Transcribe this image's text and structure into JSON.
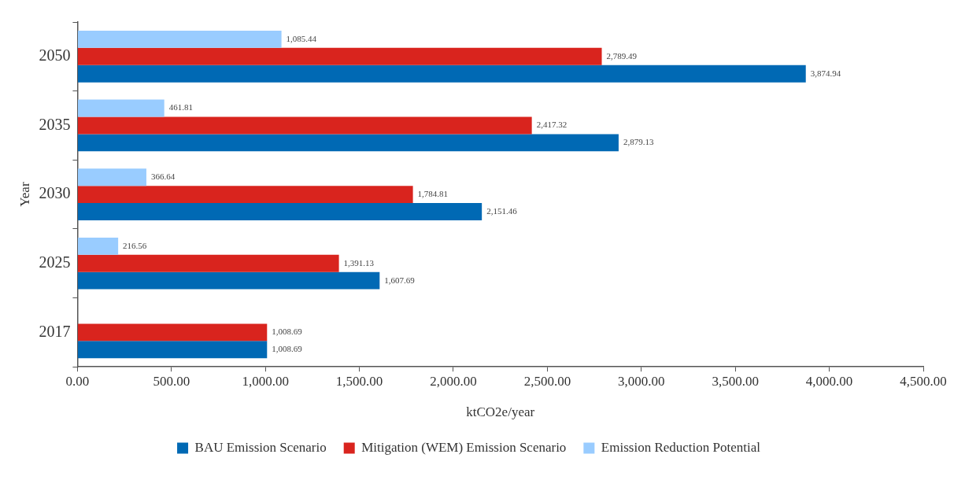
{
  "chart_data": {
    "type": "bar",
    "orientation": "horizontal",
    "xlabel": "ktCO2e/year",
    "ylabel": "Year",
    "categories": [
      "2050",
      "2035",
      "2030",
      "2025",
      "2017"
    ],
    "series": [
      {
        "name": "BAU Emission Scenario",
        "color": "#0069b4",
        "values": [
          3874.94,
          2879.13,
          2151.46,
          1607.69,
          1008.69
        ],
        "value_labels": [
          "3,874.94",
          "2,879.13",
          "2,151.46",
          "1,607.69",
          "1,008.69"
        ]
      },
      {
        "name": "Mitigation (WEM) Emission Scenario",
        "color": "#d9241e",
        "values": [
          2789.49,
          2417.32,
          1784.81,
          1391.13,
          1008.69
        ],
        "value_labels": [
          "2,789.49",
          "2,417.32",
          "1,784.81",
          "1,391.13",
          "1,008.69"
        ]
      },
      {
        "name": "Emission Reduction Potential",
        "color": "#99ccff",
        "values": [
          1085.44,
          461.81,
          366.64,
          216.56,
          null
        ],
        "value_labels": [
          "1,085.44",
          "461.81",
          "366.64",
          "216.56",
          null
        ]
      }
    ],
    "xlim": [
      0,
      4500
    ],
    "xticks": [
      {
        "value": 0,
        "label": "0.00"
      },
      {
        "value": 500,
        "label": "500.00"
      },
      {
        "value": 1000,
        "label": "1,000.00"
      },
      {
        "value": 1500,
        "label": "1,500.00"
      },
      {
        "value": 2000,
        "label": "2,000.00"
      },
      {
        "value": 2500,
        "label": "2,500.00"
      },
      {
        "value": 3000,
        "label": "3,000.00"
      },
      {
        "value": 3500,
        "label": "3,500.00"
      },
      {
        "value": 4000,
        "label": "4,000.00"
      },
      {
        "value": 4500,
        "label": "4,500.00"
      }
    ],
    "grid": false,
    "legend": "bottom"
  }
}
